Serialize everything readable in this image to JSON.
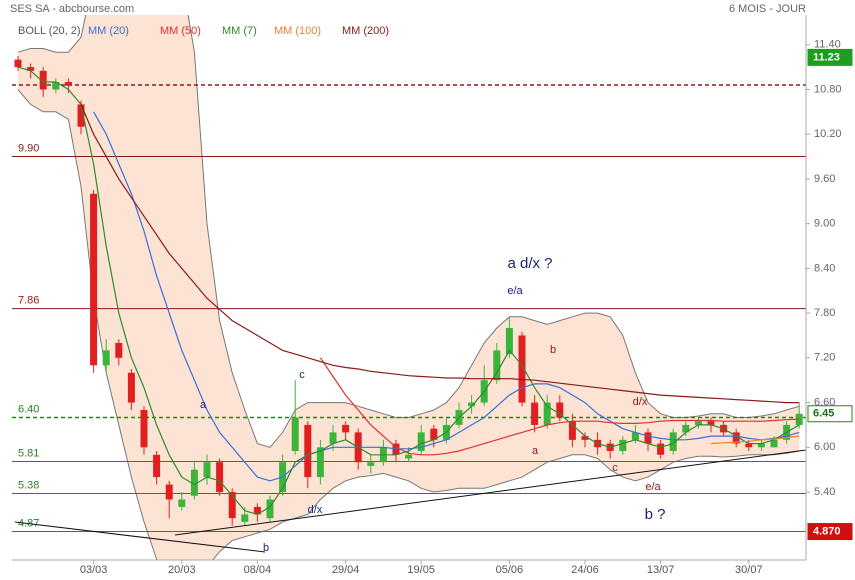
{
  "chart_data": {
    "type": "candlestick",
    "title": "SES SA - abcbourse.com",
    "subtitle": "6 MOIS - JOUR",
    "categories": [
      null,
      null,
      null,
      null,
      null,
      null,
      "03/03",
      null,
      null,
      null,
      null,
      null,
      null,
      "20/03",
      null,
      null,
      null,
      null,
      null,
      "08/04",
      null,
      null,
      null,
      null,
      null,
      null,
      "29/04",
      null,
      null,
      null,
      null,
      null,
      "19/05",
      null,
      null,
      null,
      null,
      null,
      null,
      "05/06",
      null,
      null,
      null,
      null,
      null,
      "24/06",
      null,
      null,
      null,
      null,
      null,
      "13/07",
      null,
      null,
      null,
      null,
      null,
      null,
      "30/07",
      null,
      null,
      null,
      null
    ],
    "open": [
      11.2,
      11.1,
      11.05,
      10.8,
      10.9,
      10.6,
      9.4,
      7.1,
      7.4,
      7.0,
      6.5,
      5.9,
      5.5,
      5.2,
      5.35,
      5.6,
      5.8,
      5.4,
      5.0,
      5.2,
      5.05,
      5.4,
      5.95,
      6.3,
      5.6,
      6.05,
      6.3,
      6.2,
      5.75,
      5.8,
      6.05,
      5.85,
      5.95,
      6.25,
      6.1,
      6.3,
      6.55,
      6.6,
      6.9,
      7.25,
      7.5,
      6.6,
      6.3,
      6.6,
      6.35,
      6.15,
      6.1,
      6.05,
      5.95,
      6.1,
      6.2,
      6.05,
      5.95,
      6.2,
      6.3,
      6.35,
      6.3,
      6.2,
      6.05,
      6.0,
      6.0,
      6.1,
      6.3
    ],
    "high": [
      11.25,
      11.15,
      11.1,
      10.95,
      10.95,
      10.65,
      9.45,
      7.45,
      7.45,
      7.05,
      6.55,
      5.95,
      5.55,
      5.4,
      5.8,
      5.9,
      5.85,
      5.45,
      5.2,
      5.25,
      5.35,
      5.9,
      6.9,
      6.35,
      6.1,
      6.3,
      6.35,
      6.25,
      5.9,
      6.1,
      6.1,
      6.0,
      6.3,
      6.3,
      6.4,
      6.6,
      6.7,
      7.1,
      7.4,
      7.75,
      7.55,
      6.7,
      6.7,
      6.7,
      6.45,
      6.2,
      6.2,
      6.1,
      6.15,
      6.3,
      6.25,
      6.1,
      6.25,
      6.35,
      6.4,
      6.4,
      6.35,
      6.25,
      6.1,
      6.1,
      6.15,
      6.35,
      6.6
    ],
    "low": [
      11.05,
      10.95,
      10.7,
      10.75,
      10.75,
      10.2,
      7.0,
      7.0,
      7.1,
      6.5,
      5.9,
      5.5,
      5.05,
      5.15,
      5.3,
      5.5,
      5.35,
      4.95,
      4.95,
      5.0,
      5.0,
      5.35,
      5.9,
      5.45,
      5.5,
      5.95,
      6.1,
      5.7,
      5.65,
      5.75,
      5.8,
      5.8,
      5.9,
      6.0,
      6.05,
      6.25,
      6.45,
      6.55,
      6.85,
      7.2,
      6.55,
      6.2,
      6.25,
      6.35,
      6.0,
      6.0,
      5.9,
      5.85,
      5.9,
      6.05,
      5.95,
      5.85,
      5.9,
      6.15,
      6.25,
      6.2,
      6.15,
      6.0,
      5.95,
      5.95,
      6.0,
      6.05,
      6.25
    ],
    "close": [
      11.1,
      11.05,
      10.8,
      10.9,
      10.85,
      10.3,
      7.1,
      7.3,
      7.2,
      6.6,
      6.0,
      5.6,
      5.3,
      5.3,
      5.7,
      5.8,
      5.4,
      5.05,
      5.1,
      5.1,
      5.3,
      5.8,
      6.4,
      5.6,
      6.0,
      6.2,
      6.2,
      5.8,
      5.8,
      6.0,
      5.9,
      5.9,
      6.2,
      6.1,
      6.3,
      6.5,
      6.6,
      6.9,
      7.3,
      7.6,
      6.6,
      6.3,
      6.6,
      6.4,
      6.1,
      6.1,
      6.0,
      5.95,
      6.1,
      6.2,
      6.05,
      5.9,
      6.2,
      6.3,
      6.35,
      6.3,
      6.2,
      6.05,
      6.0,
      6.05,
      6.1,
      6.3,
      6.45
    ],
    "up_color": "#3cb43c",
    "down_color": "#e02020",
    "series": [
      {
        "name": "BOLL (20, 2)",
        "color": "#777777",
        "fill": "#fde3d3",
        "upper": [
          11.3,
          11.35,
          11.35,
          11.3,
          11.3,
          11.5,
          12.3,
          13.0,
          13.5,
          13.8,
          13.8,
          13.5,
          13.0,
          12.3,
          11.3,
          9.0,
          7.7,
          7.0,
          6.5,
          6.05,
          6.0,
          6.2,
          6.5,
          6.6,
          6.6,
          6.6,
          6.6,
          6.55,
          6.5,
          6.45,
          6.4,
          6.4,
          6.45,
          6.5,
          6.6,
          6.8,
          7.1,
          7.4,
          7.6,
          7.75,
          7.75,
          7.7,
          7.65,
          7.7,
          7.75,
          7.8,
          7.8,
          7.75,
          7.5,
          7.0,
          6.6,
          6.45,
          6.4,
          6.4,
          6.42,
          6.45,
          6.45,
          6.4,
          6.4,
          6.42,
          6.45,
          6.5,
          6.55
        ],
        "lower": [
          10.8,
          10.6,
          10.5,
          10.5,
          10.4,
          9.5,
          8.0,
          7.0,
          6.3,
          5.6,
          5.0,
          4.5,
          4.2,
          4.1,
          4.2,
          4.4,
          4.6,
          4.75,
          4.8,
          4.85,
          4.9,
          5.0,
          5.05,
          5.1,
          5.3,
          5.45,
          5.55,
          5.6,
          5.62,
          5.65,
          5.6,
          5.55,
          5.45,
          5.4,
          5.42,
          5.45,
          5.45,
          5.45,
          5.5,
          5.55,
          5.6,
          5.7,
          5.8,
          5.85,
          5.9,
          5.9,
          5.85,
          5.7,
          5.6,
          5.55,
          5.6,
          5.7,
          5.8,
          5.85,
          5.88,
          5.88,
          5.87,
          5.88,
          5.9,
          5.9,
          5.9,
          5.92,
          5.95
        ]
      },
      {
        "name": "MM (20)",
        "color": "#3a6fd8",
        "values": [
          null,
          null,
          null,
          null,
          null,
          null,
          10.5,
          10.2,
          9.8,
          9.4,
          8.9,
          8.3,
          7.8,
          7.3,
          6.9,
          6.5,
          6.2,
          6.0,
          5.8,
          5.6,
          5.55,
          5.6,
          5.75,
          5.9,
          5.95,
          6.0,
          6.0,
          6.0,
          6.0,
          6.0,
          5.98,
          5.98,
          6.0,
          6.05,
          6.1,
          6.2,
          6.3,
          6.4,
          6.55,
          6.7,
          6.8,
          6.85,
          6.85,
          6.8,
          6.7,
          6.6,
          6.45,
          6.35,
          6.25,
          6.2,
          6.15,
          6.12,
          6.1,
          6.1,
          6.12,
          6.15,
          6.15,
          6.15,
          6.12,
          6.1,
          6.12,
          6.15,
          6.2
        ]
      },
      {
        "name": "MM (50)",
        "color": "#e03030",
        "values": [
          null,
          null,
          null,
          null,
          null,
          null,
          null,
          null,
          null,
          null,
          null,
          null,
          null,
          null,
          null,
          null,
          null,
          null,
          null,
          null,
          null,
          null,
          null,
          null,
          7.2,
          6.95,
          6.7,
          6.5,
          6.3,
          6.15,
          6.0,
          5.92,
          5.9,
          5.9,
          5.92,
          5.95,
          6.0,
          6.05,
          6.1,
          6.15,
          6.2,
          6.25,
          6.3,
          6.33,
          6.35,
          6.35,
          6.35,
          6.33,
          6.32,
          6.32,
          6.33,
          6.35,
          6.36,
          6.36,
          6.36,
          6.36,
          6.35,
          6.35,
          6.35,
          6.35,
          6.36,
          6.37,
          6.38
        ]
      },
      {
        "name": "MM (7)",
        "color": "#2e8b2e",
        "values": [
          11.1,
          11.05,
          10.9,
          10.9,
          10.8,
          10.6,
          9.8,
          8.7,
          7.8,
          7.2,
          6.8,
          6.3,
          5.9,
          5.6,
          5.5,
          5.6,
          5.55,
          5.35,
          5.15,
          5.1,
          5.2,
          5.45,
          5.8,
          5.9,
          5.95,
          6.05,
          6.1,
          6.0,
          5.9,
          5.9,
          5.9,
          5.95,
          6.05,
          6.1,
          6.2,
          6.4,
          6.55,
          6.75,
          7.0,
          7.3,
          7.1,
          6.8,
          6.55,
          6.45,
          6.3,
          6.15,
          6.05,
          6.0,
          6.05,
          6.1,
          6.05,
          6.0,
          6.05,
          6.2,
          6.3,
          6.3,
          6.25,
          6.15,
          6.05,
          6.05,
          6.1,
          6.2,
          6.3
        ]
      },
      {
        "name": "MM (100)",
        "color": "#f08030",
        "values": [
          null,
          null,
          null,
          null,
          null,
          null,
          null,
          null,
          null,
          null,
          null,
          null,
          null,
          null,
          null,
          null,
          null,
          null,
          null,
          null,
          null,
          null,
          null,
          null,
          null,
          null,
          null,
          null,
          null,
          null,
          null,
          null,
          null,
          null,
          null,
          null,
          null,
          null,
          null,
          null,
          null,
          null,
          null,
          null,
          null,
          null,
          null,
          null,
          null,
          null,
          null,
          null,
          null,
          null,
          null,
          6.05,
          6.06,
          6.07,
          6.08,
          6.1,
          6.11,
          6.13,
          6.15
        ]
      },
      {
        "name": "MM (200)",
        "color": "#8b1a1a",
        "values": [
          null,
          null,
          null,
          null,
          null,
          10.6,
          10.2,
          9.9,
          9.6,
          9.35,
          9.1,
          8.85,
          8.6,
          8.4,
          8.2,
          8.0,
          7.85,
          7.7,
          7.6,
          7.5,
          7.4,
          7.3,
          7.25,
          7.2,
          7.15,
          7.1,
          7.07,
          7.05,
          7.02,
          7.0,
          6.98,
          6.96,
          6.95,
          6.94,
          6.93,
          6.93,
          6.92,
          6.92,
          6.92,
          6.92,
          6.91,
          6.9,
          6.88,
          6.86,
          6.84,
          6.82,
          6.8,
          6.78,
          6.76,
          6.74,
          6.72,
          6.7,
          6.69,
          6.68,
          6.67,
          6.66,
          6.65,
          6.64,
          6.63,
          6.62,
          6.61,
          6.6,
          6.6
        ]
      }
    ],
    "ylim": [
      4.22,
      12.0
    ],
    "yticks": [
      {
        "value": 5.4,
        "label": "5.40"
      },
      {
        "value": 6,
        "label": "6.00"
      },
      {
        "value": 6.6,
        "label": "6.60"
      },
      {
        "value": 7.2,
        "label": "7.20"
      },
      {
        "value": 7.8,
        "label": "7.80"
      },
      {
        "value": 8.4,
        "label": "8.40"
      },
      {
        "value": 9,
        "label": "9.00"
      },
      {
        "value": 9.6,
        "label": "9.60"
      },
      {
        "value": 10.2,
        "label": "10.20"
      },
      {
        "value": 10.8,
        "label": "10.80"
      },
      {
        "value": 11.4,
        "label": "11.40"
      }
    ],
    "levels": [
      {
        "value": 10.86,
        "color": "#8b1a1a",
        "dashed": true
      },
      {
        "value": 9.9,
        "label": "9.90",
        "color": "#8b1a1a",
        "dashed": false
      },
      {
        "value": 7.86,
        "label": "7.86",
        "color": "#8b1a1a",
        "dashed": false
      },
      {
        "value": 6.4,
        "label": "6.40",
        "color": "#1a8a1a",
        "dashed": true
      },
      {
        "value": 5.81,
        "label": "5.81",
        "color": "#2e7d32",
        "dashed": false
      },
      {
        "value": 5.38,
        "label": "5.38",
        "color": "#2e7d32",
        "dashed": false
      },
      {
        "value": 4.87,
        "label": "4.87",
        "color": "#2e7d32",
        "dashed": false
      }
    ],
    "price_tags": [
      {
        "value": 11.23,
        "label": "11.23",
        "color": "#1e9e1e",
        "text_color": "#ffffff"
      },
      {
        "value": 6.45,
        "label": "6.45",
        "color": "#ffffff",
        "text_color": "#1a6e1a"
      },
      {
        "value": 4.87,
        "label": "4.870",
        "color": "#d01010",
        "text_color": "#ffffff"
      }
    ],
    "annotations": [
      {
        "text": "a d/x ?",
        "color": "#1a237e",
        "big": true
      },
      {
        "text": "e/a",
        "color": "#1a237e",
        "big": false
      },
      {
        "text": "b",
        "color": "#8b1a1a",
        "big": false
      },
      {
        "text": "a",
        "color": "#8b1a1a",
        "big": false
      },
      {
        "text": "d/x",
        "color": "#8b1a1a",
        "big": false
      },
      {
        "text": "c",
        "color": "#8b1a1a",
        "big": false
      },
      {
        "text": "e/a",
        "color": "#8b1a1a",
        "big": false
      },
      {
        "text": "b ?",
        "color": "#1a237e",
        "big": true
      },
      {
        "text": "c",
        "color": "#1a237e",
        "big": false
      },
      {
        "text": "a",
        "color": "#1a237e",
        "big": false
      },
      {
        "text": "d/x",
        "color": "#1a237e",
        "big": false
      },
      {
        "text": "b",
        "color": "#1a237e",
        "big": false
      }
    ]
  }
}
